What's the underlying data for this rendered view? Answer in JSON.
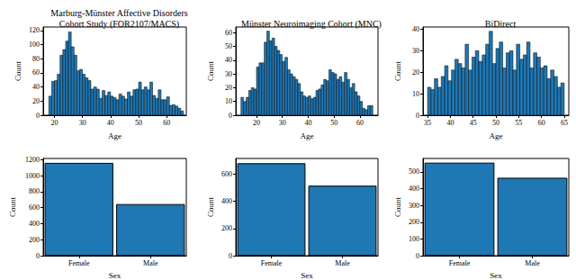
{
  "chart_data": [
    {
      "type": "histogram",
      "title": "Marburg-Münster Affective Disorders\nCohort Study (FOR2107/MACS)",
      "xlabel": "Age",
      "ylabel": "Count",
      "color": "#1f77b4",
      "bins": [
        18,
        19,
        20,
        21,
        22,
        23,
        24,
        25,
        26,
        27,
        28,
        29,
        30,
        31,
        32,
        33,
        34,
        35,
        36,
        37,
        38,
        39,
        40,
        41,
        42,
        43,
        44,
        45,
        46,
        47,
        48,
        49,
        50,
        51,
        52,
        53,
        54,
        55,
        56,
        57,
        58,
        59,
        60,
        61,
        62,
        63,
        64,
        65,
        66
      ],
      "counts": [
        27,
        48,
        49,
        58,
        85,
        93,
        105,
        118,
        97,
        85,
        63,
        65,
        58,
        53,
        49,
        37,
        40,
        37,
        24,
        35,
        28,
        33,
        27,
        25,
        22,
        30,
        27,
        23,
        33,
        27,
        36,
        37,
        47,
        36,
        40,
        36,
        47,
        28,
        24,
        36,
        22,
        22,
        26,
        14,
        15,
        13,
        10,
        6
      ],
      "xlim": [
        16,
        67
      ],
      "xticks": [
        20,
        30,
        40,
        50,
        60
      ],
      "ylim": [
        0,
        125
      ],
      "yticks": [
        0,
        20,
        40,
        60,
        80,
        100,
        120
      ]
    },
    {
      "type": "histogram",
      "title": "Münster Neuroimaging Cohort (MNC)",
      "xlabel": "Age",
      "ylabel": "Count",
      "color": "#1f77b4",
      "bins": [
        14,
        15,
        16,
        17,
        18,
        19,
        20,
        21,
        22,
        23,
        24,
        25,
        26,
        27,
        28,
        29,
        30,
        31,
        32,
        33,
        34,
        35,
        36,
        37,
        38,
        39,
        40,
        41,
        42,
        43,
        44,
        45,
        46,
        47,
        48,
        49,
        50,
        51,
        52,
        53,
        54,
        55,
        56,
        57,
        58,
        59,
        60,
        61,
        62,
        63,
        64,
        65
      ],
      "counts": [
        13,
        10,
        13,
        18,
        20,
        19,
        35,
        38,
        38,
        53,
        61,
        54,
        56,
        50,
        47,
        44,
        39,
        42,
        33,
        30,
        28,
        26,
        23,
        17,
        14,
        13,
        14,
        12,
        13,
        18,
        19,
        22,
        26,
        25,
        33,
        31,
        30,
        26,
        28,
        24,
        31,
        26,
        20,
        23,
        17,
        14,
        10,
        5,
        4,
        7,
        7
      ],
      "xlim": [
        12,
        67
      ],
      "xticks": [
        20,
        30,
        40,
        50,
        60
      ],
      "ylim": [
        0,
        64
      ],
      "yticks": [
        0,
        10,
        20,
        30,
        40,
        50,
        60
      ]
    },
    {
      "type": "histogram",
      "title": "BiDirect",
      "xlabel": "Age",
      "ylabel": "Count",
      "color": "#1f77b4",
      "bins": [
        35,
        35.75,
        36.5,
        37.25,
        38,
        38.75,
        39.5,
        40.25,
        41,
        41.75,
        42.5,
        43.25,
        44,
        44.75,
        45.5,
        46.25,
        47,
        47.75,
        48.5,
        49.25,
        50,
        50.75,
        51.5,
        52.25,
        53,
        53.75,
        54.5,
        55.25,
        56,
        56.75,
        57.5,
        58.25,
        59,
        59.75,
        60.5,
        61.25,
        62,
        62.75,
        63.5,
        64.25,
        65
      ],
      "counts": [
        13,
        12,
        17,
        13,
        18,
        23,
        16,
        21,
        26,
        24,
        22,
        33,
        21,
        27,
        30,
        25,
        28,
        33,
        39,
        24,
        31,
        34,
        22,
        29,
        30,
        21,
        33,
        26,
        28,
        34,
        22,
        29,
        27,
        22,
        23,
        17,
        21,
        18,
        13,
        15
      ],
      "xlim": [
        34,
        66
      ],
      "xticks": [
        35,
        40,
        45,
        50,
        55,
        60,
        65
      ],
      "ylim": [
        0,
        41
      ],
      "yticks": [
        0,
        10,
        20,
        30,
        40
      ]
    },
    {
      "type": "bar",
      "xlabel": "Sex",
      "ylabel": "Count",
      "color": "#1f77b4",
      "categories": [
        "Female",
        "Male"
      ],
      "values": [
        1160,
        645
      ],
      "ylim": [
        0,
        1215
      ],
      "yticks": [
        0,
        200,
        400,
        600,
        800,
        1000,
        1200
      ]
    },
    {
      "type": "bar",
      "xlabel": "Sex",
      "ylabel": "Count",
      "color": "#1f77b4",
      "categories": [
        "Female",
        "Male"
      ],
      "values": [
        680,
        515
      ],
      "ylim": [
        0,
        715
      ],
      "yticks": [
        0,
        200,
        400,
        600
      ]
    },
    {
      "type": "bar",
      "xlabel": "Sex",
      "ylabel": "Count",
      "color": "#1f77b4",
      "categories": [
        "Female",
        "Male"
      ],
      "values": [
        555,
        465
      ],
      "ylim": [
        0,
        580
      ],
      "yticks": [
        0,
        100,
        200,
        300,
        400,
        500
      ]
    }
  ]
}
